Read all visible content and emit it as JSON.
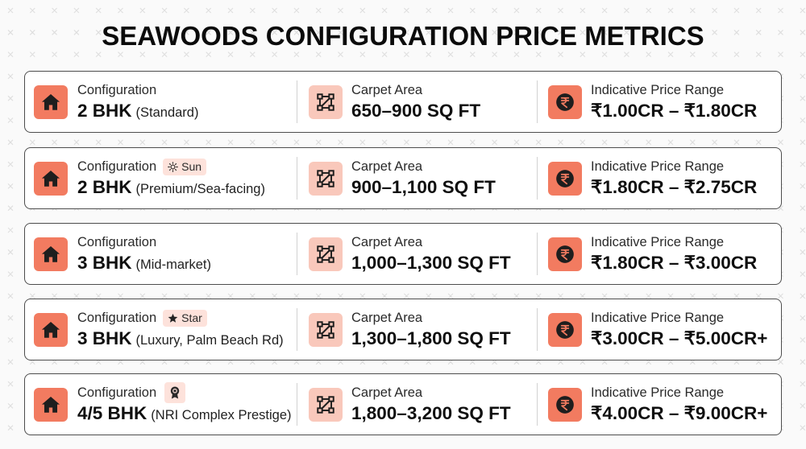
{
  "title": "SEAWOODS CONFIGURATION PRICE METRICS",
  "labels": {
    "configuration": "Configuration",
    "carpet_area": "Carpet Area",
    "price_range": "Indicative Price Range"
  },
  "icons": {
    "configuration": "home-icon",
    "carpet_area": "area-icon",
    "price_range": "rupee-icon"
  },
  "colors": {
    "accent": "#F27B60",
    "accent_soft": "#F9C8BB",
    "badge_bg": "#FDE2DB",
    "pattern": "#DEDEDE"
  },
  "rows": [
    {
      "configuration": "2 BHK",
      "note": "(Standard)",
      "carpet_area": "650–900 SQ FT",
      "price_range": "₹1.00CR – ₹1.80CR"
    },
    {
      "configuration": "2 BHK",
      "note": "(Premium/Sea-facing)",
      "badge": {
        "icon": "sun-icon",
        "label": "Sun"
      },
      "carpet_area": "900–1,100 SQ FT",
      "price_range": "₹1.80CR – ₹2.75CR"
    },
    {
      "configuration": "3 BHK",
      "note": "(Mid-market)",
      "carpet_area": "1,000–1,300 SQ FT",
      "price_range": "₹1.80CR – ₹3.00CR"
    },
    {
      "configuration": "3 BHK",
      "note": "(Luxury, Palm Beach Rd)",
      "badge": {
        "icon": "star-icon",
        "label": "Star"
      },
      "carpet_area": "1,300–1,800 SQ FT",
      "price_range": "₹3.00CR – ₹5.00CR+"
    },
    {
      "configuration": "4/5 BHK",
      "note": "(NRI Complex Prestige)",
      "badge": {
        "icon": "award-icon"
      },
      "carpet_area": "1,800–3,200 SQ FT",
      "price_range": "₹4.00CR – ₹9.00CR+"
    }
  ]
}
